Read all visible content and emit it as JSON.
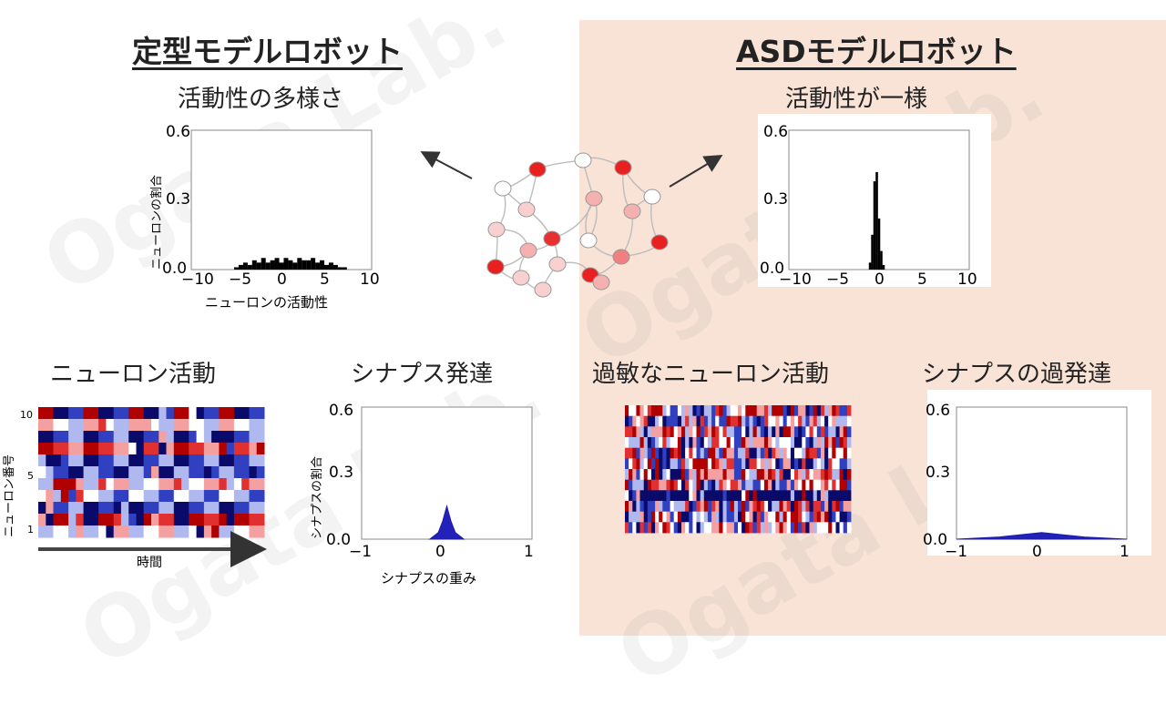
{
  "left": {
    "title": "定型モデルロボット",
    "hist_title": "活動性の多様さ",
    "hist": {
      "ylabel": "ニューロンの割合",
      "xlabel": "ニューロンの活動性",
      "yticks": [
        "0.6",
        "0.3",
        "0.0"
      ],
      "xticks": [
        "−10",
        "−5",
        "0",
        "5",
        "10"
      ]
    },
    "raster_title": "ニューロン活動",
    "raster": {
      "ylabel": "ニューロン番号",
      "xlabel": "時間",
      "yticks": [
        "10",
        "5",
        "1"
      ]
    },
    "syn_title": "シナプス発達",
    "syn": {
      "ylabel": "シナプスの割合",
      "xlabel": "シナプスの重み",
      "yticks": [
        "0.6",
        "0.3",
        "0.0"
      ],
      "xticks": [
        "−1",
        "0",
        "1"
      ]
    }
  },
  "right": {
    "title": "ASDモデルロボット",
    "hist_title": "活動性が一様",
    "hist": {
      "yticks": [
        "0.6",
        "0.3",
        "0.0"
      ],
      "xticks": [
        "−10",
        "−5",
        "0",
        "5",
        "10"
      ]
    },
    "raster_title": "過敏なニューロン活動",
    "syn_title": "シナプスの過発達",
    "syn": {
      "yticks": [
        "0.6",
        "0.3",
        "0.0"
      ],
      "xticks": [
        "−1",
        "0",
        "1"
      ]
    }
  },
  "watermark": "Ogata Lab.",
  "chart_data": [
    {
      "type": "bar",
      "panel": "定型モデルロボット",
      "x": [
        -5,
        -4.5,
        -4,
        -3.5,
        -3,
        -2.5,
        -2,
        -1.5,
        -1,
        -0.5,
        0,
        0.5,
        1,
        1.5,
        2,
        2.5,
        3,
        3.5,
        4,
        4.5,
        5,
        5.5,
        6,
        6.5,
        7
      ],
      "values": [
        0.01,
        0.02,
        0.03,
        0.02,
        0.04,
        0.03,
        0.05,
        0.03,
        0.04,
        0.05,
        0.03,
        0.05,
        0.04,
        0.03,
        0.05,
        0.04,
        0.04,
        0.05,
        0.03,
        0.04,
        0.02,
        0.03,
        0.02,
        0.01,
        0.01
      ],
      "xlim": [
        -10,
        10
      ],
      "ylim": [
        0,
        0.6
      ]
    },
    {
      "type": "bar",
      "panel": "ASDモデルロボット",
      "x": [
        -1,
        -0.75,
        -0.5,
        -0.25,
        0,
        0.25,
        0.5
      ],
      "values": [
        0.03,
        0.15,
        0.38,
        0.42,
        0.22,
        0.08,
        0.02
      ],
      "xlim": [
        -10,
        10
      ],
      "ylim": [
        0,
        0.6
      ]
    },
    {
      "type": "area",
      "panel": "定型モデルロボット",
      "x": [
        -0.2,
        -0.1,
        -0.05,
        0,
        0.05,
        0.1,
        0.2
      ],
      "values": [
        0.0,
        0.03,
        0.08,
        0.15,
        0.08,
        0.03,
        0.0
      ],
      "xlim": [
        -1,
        1
      ],
      "ylim": [
        0,
        0.6
      ]
    },
    {
      "type": "area",
      "panel": "ASDモデルロボット",
      "x": [
        -1,
        -0.5,
        0,
        0.5,
        1
      ],
      "values": [
        0.0,
        0.01,
        0.03,
        0.01,
        0.0
      ],
      "xlim": [
        -1,
        1
      ],
      "ylim": [
        0,
        0.6
      ]
    }
  ]
}
